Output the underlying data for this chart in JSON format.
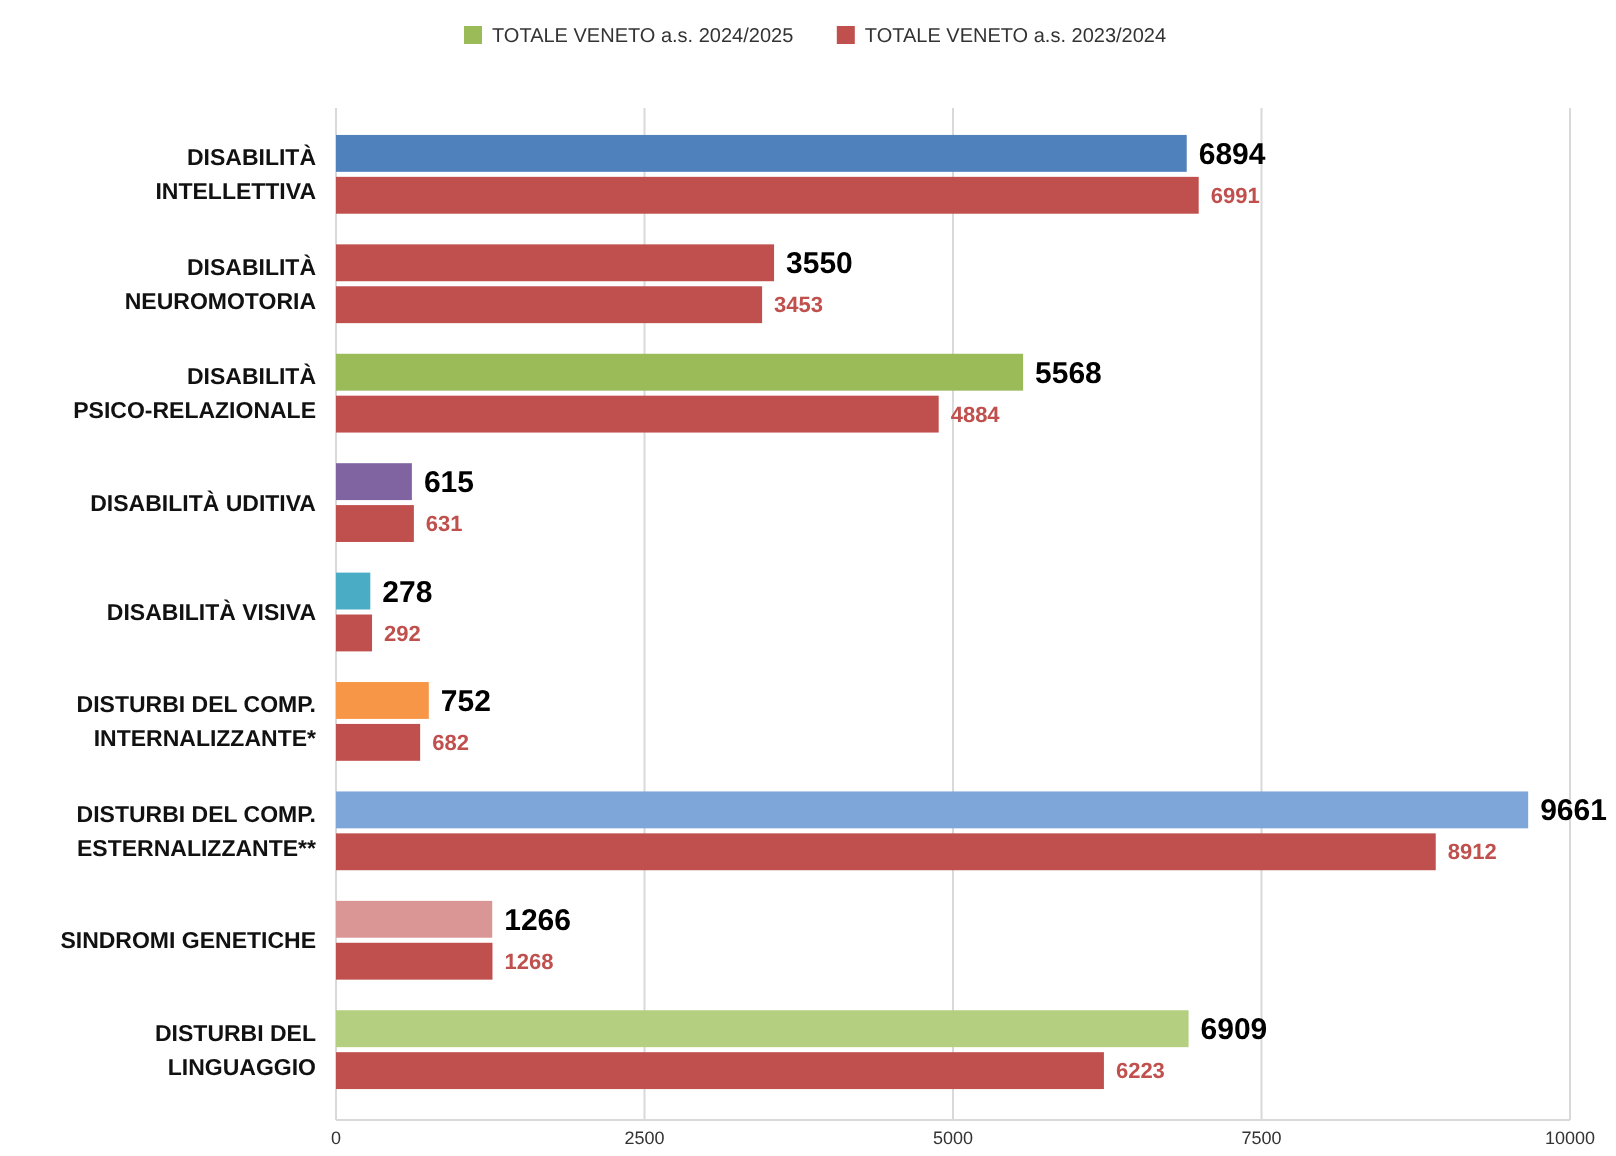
{
  "chart_data": {
    "type": "bar",
    "orientation": "horizontal",
    "categories": [
      "DISABILITÀ INTELLETTIVA",
      "DISABILITÀ NEUROMOTORIA",
      "DISABILITÀ PSICO-RELAZIONALE",
      "DISABILITÀ UDITIVA",
      "DISABILITÀ VISIVA",
      "DISTURBI DEL COMP. INTERNALIZZANTE*",
      "DISTURBI DEL COMP. ESTERNALIZZANTE**",
      "SINDROMI GENETICHE",
      "DISTURBI DEL LINGUAGGIO"
    ],
    "series": [
      {
        "name": "TOTALE VENETO a.s. 2024/2025",
        "color": "#9bbb59",
        "colors": [
          "#4f81bd",
          "#c0504d",
          "#9bbb59",
          "#8064a2",
          "#4bacc6",
          "#f79646",
          "#7fa6d9",
          "#d99694",
          "#b3cf7f"
        ],
        "values": [
          6894,
          3550,
          5568,
          615,
          278,
          752,
          9661,
          1266,
          6909
        ]
      },
      {
        "name": "TOTALE VENETO a.s. 2023/2024",
        "color": "#c0504d",
        "values": [
          6991,
          3453,
          4884,
          631,
          292,
          682,
          8912,
          1268,
          6223
        ]
      }
    ],
    "xlim": [
      0,
      10000
    ],
    "xticks": [
      0,
      2500,
      5000,
      7500,
      10000
    ],
    "grid": "x",
    "legend": "top",
    "data_labels": true
  }
}
